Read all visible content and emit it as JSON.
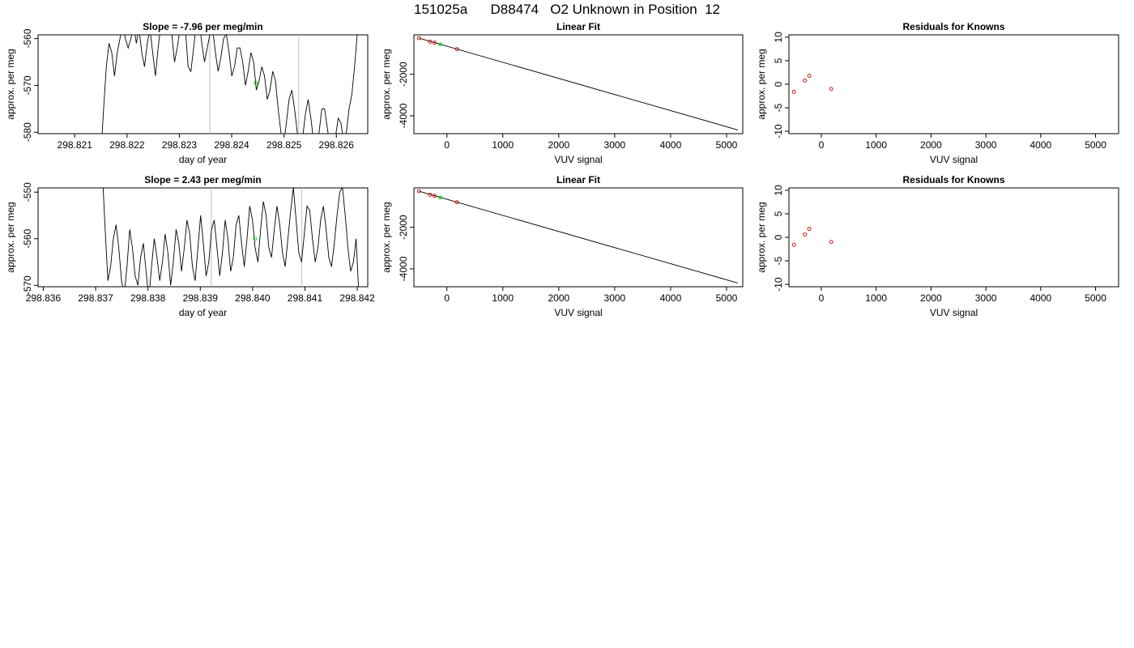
{
  "page_title": "151025a      D88474   O2 Unknown in Position  12",
  "colors": {
    "trace": "#000000",
    "frame": "#000000",
    "known_point": "#cc0000",
    "unknown_point": "#00cc00",
    "marker_line": "#bebebe"
  },
  "chart_data": [
    {
      "id": "row1-timeseries",
      "type": "line",
      "title": "Slope =  -7.96  per meg/min",
      "xlabel": "day of year",
      "ylabel": "approx. per meg",
      "xlim": [
        298.8203,
        298.8266
      ],
      "ylim": [
        -580.3,
        -559.2
      ],
      "xticks": [
        298.821,
        298.822,
        298.823,
        298.824,
        298.825,
        298.826
      ],
      "xtick_labels": [
        "298.821",
        "298.822",
        "298.823",
        "298.824",
        "298.825",
        "298.826"
      ],
      "yticks": [
        -580,
        -570,
        -560
      ],
      "ytick_labels": [
        "-580",
        "-570",
        "-560"
      ],
      "vlines": [
        298.82358,
        298.82528
      ],
      "series_start": 298.8215,
      "series_end": 298.8264,
      "y": [
        -585,
        -575,
        -566,
        -561,
        -563,
        -568,
        -563,
        -560,
        -557,
        -560,
        -562,
        -560,
        -557,
        -561,
        -558,
        -563,
        -566,
        -561,
        -558,
        -563,
        -568,
        -562,
        -557,
        -555,
        -558,
        -556,
        -559,
        -565,
        -562,
        -558,
        -556,
        -558,
        -566,
        -567,
        -562,
        -557,
        -556,
        -561,
        -565,
        -562,
        -559,
        -558,
        -563,
        -567,
        -564,
        -560,
        -559,
        -563,
        -568,
        -566,
        -562,
        -562,
        -565,
        -570,
        -567,
        -563,
        -565,
        -571,
        -569,
        -566,
        -568,
        -573,
        -571,
        -567,
        -569,
        -575,
        -580,
        -583,
        -578,
        -573,
        -571,
        -575,
        -580,
        -583,
        -581,
        -576,
        -573,
        -577,
        -582,
        -584,
        -580,
        -575,
        -575,
        -579,
        -583,
        -585,
        -581,
        -577,
        -578,
        -582,
        -580,
        -575,
        -572,
        -566,
        -559
      ],
      "points": [
        {
          "x": 298.82446,
          "y": -569.5,
          "kind": "unknown"
        }
      ]
    },
    {
      "id": "row1-linear-fit",
      "type": "scatter",
      "title": "Linear Fit",
      "xlabel": "VUV signal",
      "ylabel": "approx. per meg",
      "xlim": [
        -590,
        5290
      ],
      "ylim": [
        -4860,
        -100
      ],
      "xticks": [
        0,
        1000,
        2000,
        3000,
        4000,
        5000
      ],
      "xtick_labels": [
        "0",
        "1000",
        "2000",
        "3000",
        "4000",
        "5000"
      ],
      "yticks": [
        -4000,
        -2000
      ],
      "ytick_labels": [
        "-4000",
        "-2000"
      ],
      "fit_line": [
        [
          -500,
          -260
        ],
        [
          5200,
          -4680
        ]
      ],
      "points": [
        {
          "x": -500,
          "y": -260,
          "kind": "known"
        },
        {
          "x": -300,
          "y": -430,
          "kind": "known"
        },
        {
          "x": -220,
          "y": -480,
          "kind": "known"
        },
        {
          "x": 180,
          "y": -790,
          "kind": "known"
        },
        {
          "x": -120,
          "y": -560,
          "kind": "unknown"
        }
      ]
    },
    {
      "id": "row1-residuals",
      "type": "scatter",
      "title": "Residuals for Knowns",
      "xlabel": "VUV signal",
      "ylabel": "approx. per meg",
      "xlim": [
        -590,
        5420
      ],
      "ylim": [
        -10.5,
        10.5
      ],
      "xticks": [
        0,
        1000,
        2000,
        3000,
        4000,
        5000
      ],
      "xtick_labels": [
        "0",
        "1000",
        "2000",
        "3000",
        "4000",
        "5000"
      ],
      "yticks": [
        -10,
        -5,
        0,
        5,
        10
      ],
      "ytick_labels": [
        "-10",
        "-5",
        "0",
        "5",
        "10"
      ],
      "points": [
        {
          "x": -500,
          "y": -1.6,
          "kind": "known"
        },
        {
          "x": -300,
          "y": 0.8,
          "kind": "known"
        },
        {
          "x": -220,
          "y": 1.8,
          "kind": "known"
        },
        {
          "x": 180,
          "y": -1.0,
          "kind": "known"
        }
      ]
    },
    {
      "id": "row2-timeseries",
      "type": "line",
      "title": "Slope =  2.43  per meg/min",
      "xlabel": "day of year",
      "ylabel": "approx. per meg",
      "xlim": [
        298.8359,
        298.8422
      ],
      "ylim": [
        -570.3,
        -549.1
      ],
      "xticks": [
        298.836,
        298.837,
        298.838,
        298.839,
        298.84,
        298.841,
        298.842
      ],
      "xtick_labels": [
        "298.836",
        "298.837",
        "298.838",
        "298.839",
        "298.840",
        "298.841",
        "298.842"
      ],
      "yticks": [
        -570,
        -560,
        -550
      ],
      "ytick_labels": [
        "-570",
        "-560",
        "-550"
      ],
      "vlines": [
        298.83921,
        298.84094
      ],
      "series_start": 298.83713,
      "series_end": 298.84203,
      "y": [
        -546,
        -558,
        -569,
        -566,
        -560,
        -557,
        -562,
        -569,
        -572,
        -566,
        -558,
        -562,
        -568,
        -570,
        -564,
        -561,
        -567,
        -573,
        -566,
        -560,
        -564,
        -569,
        -565,
        -559,
        -563,
        -570,
        -565,
        -558,
        -561,
        -567,
        -562,
        -556,
        -559,
        -566,
        -569,
        -562,
        -555,
        -561,
        -568,
        -565,
        -558,
        -556,
        -562,
        -568,
        -563,
        -556,
        -560,
        -567,
        -564,
        -557,
        -555,
        -561,
        -566,
        -560,
        -553,
        -556,
        -562,
        -565,
        -558,
        -552,
        -555,
        -562,
        -564,
        -558,
        -553,
        -557,
        -563,
        -566,
        -560,
        -554,
        -549,
        -556,
        -563,
        -565,
        -559,
        -553,
        -554,
        -560,
        -565,
        -562,
        -556,
        -553,
        -558,
        -564,
        -566,
        -561,
        -555,
        -550,
        -549,
        -555,
        -562,
        -567,
        -565,
        -560,
        -572
      ],
      "points": [
        {
          "x": 298.84005,
          "y": -560.0,
          "kind": "unknown"
        }
      ]
    },
    {
      "id": "row2-linear-fit",
      "type": "scatter",
      "title": "Linear Fit",
      "xlabel": "VUV signal",
      "ylabel": "approx. per meg",
      "xlim": [
        -590,
        5290
      ],
      "ylim": [
        -4860,
        -100
      ],
      "xticks": [
        0,
        1000,
        2000,
        3000,
        4000,
        5000
      ],
      "xtick_labels": [
        "0",
        "1000",
        "2000",
        "3000",
        "4000",
        "5000"
      ],
      "yticks": [
        -4000,
        -2000
      ],
      "ytick_labels": [
        "-4000",
        "-2000"
      ],
      "fit_line": [
        [
          -500,
          -260
        ],
        [
          5200,
          -4680
        ]
      ],
      "points": [
        {
          "x": -500,
          "y": -260,
          "kind": "known"
        },
        {
          "x": -300,
          "y": -430,
          "kind": "known"
        },
        {
          "x": -220,
          "y": -480,
          "kind": "known"
        },
        {
          "x": 180,
          "y": -790,
          "kind": "known"
        },
        {
          "x": -120,
          "y": -560,
          "kind": "unknown"
        }
      ]
    },
    {
      "id": "row2-residuals",
      "type": "scatter",
      "title": "Residuals for Knowns",
      "xlabel": "VUV signal",
      "ylabel": "approx. per meg",
      "xlim": [
        -590,
        5420
      ],
      "ylim": [
        -10.5,
        10.5
      ],
      "xticks": [
        0,
        1000,
        2000,
        3000,
        4000,
        5000
      ],
      "xtick_labels": [
        "0",
        "1000",
        "2000",
        "3000",
        "4000",
        "5000"
      ],
      "yticks": [
        -10,
        -5,
        0,
        5,
        10
      ],
      "ytick_labels": [
        "-10",
        "-5",
        "0",
        "5",
        "10"
      ],
      "points": [
        {
          "x": -500,
          "y": -1.6,
          "kind": "known"
        },
        {
          "x": -300,
          "y": 0.6,
          "kind": "known"
        },
        {
          "x": -220,
          "y": 1.8,
          "kind": "known"
        },
        {
          "x": 180,
          "y": -1.0,
          "kind": "known"
        }
      ]
    }
  ]
}
